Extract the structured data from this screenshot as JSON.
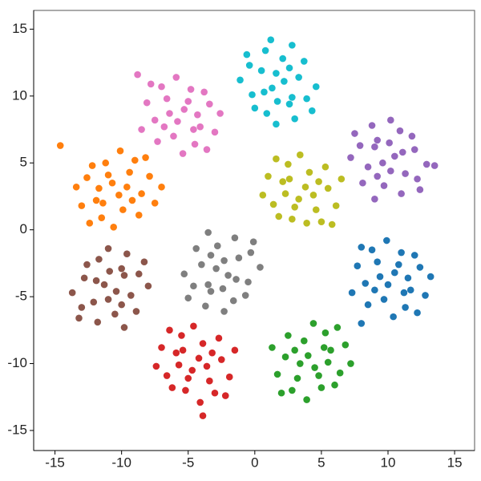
{
  "chart_data": {
    "type": "scatter",
    "xlim": [
      -16.6,
      16.5
    ],
    "ylim": [
      -16.5,
      16.4
    ],
    "xticks": [
      -15,
      -10,
      -5,
      0,
      5,
      10,
      15
    ],
    "yticks": [
      -15,
      -10,
      -5,
      0,
      5,
      10,
      15
    ],
    "series": [
      {
        "color": "#1f77b4",
        "x": [
          10.5,
          9.2,
          11.7,
          9.7,
          12.4,
          8.3,
          11.0,
          8.8,
          11.3,
          10.0,
          12.8,
          7.7,
          10.8,
          9.4,
          12.0,
          8.5,
          10.4,
          13.2,
          7.3,
          11.5,
          9.9,
          11.2,
          9.0,
          12.2,
          8.0,
          8.0
        ],
        "values": [
          -3.2,
          -2.4,
          -4.5,
          -5.2,
          -2.8,
          -4.0,
          -1.7,
          -1.5,
          -5.8,
          -4.1,
          -4.9,
          -2.7,
          -2.6,
          -3.5,
          -1.9,
          -5.6,
          -6.5,
          -3.5,
          -4.7,
          -3.6,
          -0.8,
          -4.7,
          -4.5,
          -6.2,
          -1.3,
          -7.0
        ]
      },
      {
        "color": "#ff7f0e",
        "x": [
          -10.7,
          -9.4,
          -11.9,
          -9.9,
          -12.6,
          -8.5,
          -11.2,
          -9.0,
          -11.5,
          -10.2,
          -13.0,
          -7.9,
          -11.0,
          -9.6,
          -12.2,
          -8.7,
          -10.6,
          -13.4,
          -7.5,
          -11.7,
          -10.1,
          -11.4,
          -9.2,
          -12.4,
          -8.2,
          -14.6,
          -7.0
        ],
        "values": [
          3.5,
          4.3,
          2.2,
          1.5,
          3.9,
          2.7,
          5.0,
          5.2,
          0.9,
          2.6,
          1.8,
          4.0,
          4.1,
          3.2,
          4.8,
          1.1,
          0.2,
          3.2,
          2.0,
          3.1,
          5.9,
          2.0,
          2.2,
          0.5,
          5.4,
          6.3,
          3.2
        ]
      },
      {
        "color": "#2ca02c",
        "x": [
          4.5,
          3.2,
          5.7,
          3.7,
          6.4,
          2.3,
          5.0,
          2.8,
          5.3,
          4.0,
          6.8,
          1.7,
          4.8,
          3.4,
          6.0,
          2.5,
          4.4,
          7.2,
          1.3,
          5.5,
          3.9,
          5.2,
          3.0,
          6.2,
          2.0
        ],
        "values": [
          -10.3,
          -11.1,
          -9.0,
          -8.3,
          -10.7,
          -9.5,
          -11.8,
          -12.0,
          -7.7,
          -9.4,
          -8.6,
          -10.8,
          -10.9,
          -10.0,
          -11.6,
          -7.9,
          -7.0,
          -10.0,
          -8.8,
          -9.9,
          -12.7,
          -8.8,
          -9.0,
          -7.3,
          -12.2
        ]
      },
      {
        "color": "#d62728",
        "x": [
          -4.7,
          -3.4,
          -5.9,
          -3.9,
          -6.6,
          -2.5,
          -5.2,
          -3.0,
          -5.5,
          -4.2,
          -7.0,
          -1.9,
          -5.0,
          -3.6,
          -6.2,
          -2.7,
          -4.6,
          -7.4,
          -1.5,
          -5.7,
          -4.1,
          -5.4,
          -3.2,
          -6.4,
          -2.2,
          -3.9
        ],
        "values": [
          -10.5,
          -11.3,
          -9.2,
          -8.5,
          -10.9,
          -9.7,
          -12.0,
          -12.2,
          -7.9,
          -9.6,
          -8.8,
          -11.0,
          -11.1,
          -10.2,
          -11.8,
          -8.1,
          -7.2,
          -10.2,
          -9.0,
          -10.1,
          -12.9,
          -9.0,
          -9.2,
          -7.5,
          -12.4,
          -13.9
        ]
      },
      {
        "color": "#9467bd",
        "x": [
          10.5,
          11.3,
          9.2,
          8.5,
          10.9,
          9.7,
          12.0,
          12.2,
          7.9,
          9.6,
          8.8,
          11.0,
          11.1,
          10.2,
          11.8,
          8.1,
          7.2,
          10.2,
          9.0,
          10.1,
          12.9,
          9.0,
          9.2,
          7.5,
          12.4,
          13.5
        ],
        "values": [
          5.5,
          4.2,
          6.7,
          4.7,
          7.4,
          3.3,
          6.0,
          3.8,
          6.3,
          5.0,
          7.8,
          2.7,
          5.8,
          4.4,
          7.0,
          3.5,
          5.4,
          8.2,
          2.3,
          6.5,
          4.9,
          6.2,
          4.0,
          7.2,
          3.0,
          4.8
        ]
      },
      {
        "color": "#8c564b",
        "x": [
          -11.3,
          -12.1,
          -10.0,
          -9.3,
          -11.7,
          -10.5,
          -12.8,
          -13.0,
          -8.7,
          -10.4,
          -9.6,
          -11.8,
          -11.9,
          -11.0,
          -12.6,
          -8.9,
          -8.0,
          -11.0,
          -9.8,
          -10.9,
          -13.7,
          -9.8,
          -10.0,
          -8.3,
          -13.2
        ],
        "values": [
          -4.1,
          -5.4,
          -2.9,
          -4.9,
          -2.2,
          -6.3,
          -3.6,
          -5.8,
          -3.3,
          -4.6,
          -1.8,
          -6.9,
          -3.8,
          -5.2,
          -2.6,
          -6.1,
          -4.2,
          -1.4,
          -7.3,
          -3.1,
          -4.7,
          -3.4,
          -5.6,
          -2.4,
          -6.6
        ]
      },
      {
        "color": "#e377c2",
        "x": [
          -5.3,
          -6.6,
          -4.1,
          -6.1,
          -3.4,
          -7.5,
          -4.8,
          -7.0,
          -4.5,
          -5.8,
          -3.0,
          -8.1,
          -5.0,
          -6.4,
          -3.8,
          -7.3,
          -5.4,
          -2.6,
          -8.5,
          -4.3,
          -5.9,
          -4.6,
          -6.8,
          -3.6,
          -7.8,
          -8.8
        ],
        "values": [
          9.0,
          9.8,
          7.7,
          7.0,
          9.4,
          8.2,
          10.5,
          10.7,
          6.4,
          8.1,
          7.3,
          9.5,
          9.6,
          8.7,
          10.3,
          6.6,
          5.7,
          8.7,
          7.5,
          8.6,
          11.4,
          7.5,
          7.7,
          6.0,
          10.9,
          11.6
        ]
      },
      {
        "color": "#7f7f7f",
        "x": [
          -2.0,
          -1.2,
          -3.3,
          -4.0,
          -1.6,
          -2.8,
          -0.5,
          -0.3,
          -4.6,
          -2.9,
          -3.7,
          -1.5,
          -1.4,
          -2.3,
          -0.7,
          -4.4,
          -5.3,
          -2.3,
          -3.5,
          -2.4,
          0.4,
          -3.5,
          -3.3,
          -5.0,
          -0.1
        ],
        "values": [
          -3.4,
          -2.1,
          -4.6,
          -2.6,
          -5.3,
          -1.2,
          -3.9,
          -1.7,
          -4.2,
          -2.9,
          -5.7,
          -0.6,
          -3.7,
          -2.3,
          -4.9,
          -1.4,
          -3.3,
          -6.1,
          -0.2,
          -4.4,
          -2.8,
          -4.1,
          -1.9,
          -5.1,
          -0.9
        ]
      },
      {
        "color": "#bcbd22",
        "x": [
          3.3,
          4.6,
          2.1,
          4.1,
          1.4,
          5.5,
          2.8,
          5.0,
          2.5,
          3.8,
          1.0,
          6.1,
          3.0,
          4.4,
          1.8,
          5.3,
          3.4,
          0.6,
          6.5,
          2.3,
          3.9,
          2.6,
          4.8,
          1.6,
          5.8
        ],
        "values": [
          2.3,
          1.5,
          3.6,
          4.3,
          1.9,
          3.1,
          0.8,
          0.6,
          4.9,
          3.2,
          4.0,
          1.8,
          1.7,
          2.6,
          1.0,
          4.7,
          5.6,
          2.6,
          3.8,
          2.7,
          0.5,
          3.8,
          3.6,
          5.3,
          0.4
        ]
      },
      {
        "color": "#17becf",
        "x": [
          1.3,
          0.5,
          2.6,
          3.3,
          0.9,
          2.1,
          -0.2,
          -0.4,
          3.9,
          2.2,
          3.0,
          0.8,
          0.7,
          1.6,
          0.0,
          3.7,
          4.6,
          1.6,
          2.8,
          1.7,
          -1.1,
          2.8,
          2.6,
          4.3,
          -0.6,
          1.2
        ],
        "values": [
          10.6,
          11.9,
          9.4,
          11.4,
          8.7,
          12.8,
          10.1,
          12.3,
          9.8,
          11.1,
          8.3,
          13.4,
          10.3,
          11.7,
          9.1,
          12.6,
          10.7,
          7.9,
          13.8,
          9.6,
          11.2,
          9.9,
          12.1,
          8.9,
          13.1,
          14.2
        ]
      }
    ]
  }
}
